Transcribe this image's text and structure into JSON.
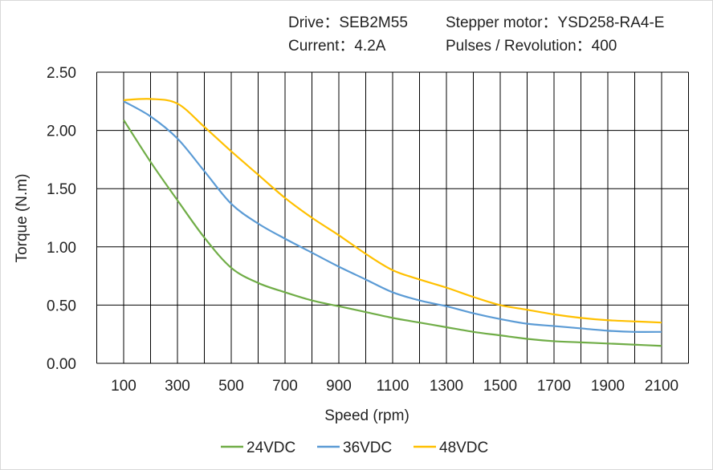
{
  "header": {
    "drive": "Drive：SEB2M55",
    "motor": "Stepper motor：YSD258-RA4-E",
    "current": "Current：4.2A",
    "pulses": "Pulses / Revolution：400"
  },
  "chart_data": {
    "type": "line",
    "title": "",
    "xlabel": "Speed  (rpm)",
    "ylabel": "Torque (N.m)",
    "xlim": [
      0,
      2200
    ],
    "ylim": [
      0,
      2.5
    ],
    "x_ticks": [
      100,
      300,
      500,
      700,
      900,
      1100,
      1300,
      1500,
      1700,
      1900,
      2100
    ],
    "y_ticks": [
      "0.00",
      "0.50",
      "1.00",
      "1.50",
      "2.00",
      "2.50"
    ],
    "grid": true,
    "legend_position": "bottom",
    "x": [
      100,
      200,
      300,
      400,
      500,
      600,
      700,
      800,
      900,
      1000,
      1100,
      1200,
      1300,
      1400,
      1500,
      1600,
      1700,
      1800,
      1900,
      2000,
      2100
    ],
    "series": [
      {
        "name": "24VDC",
        "color": "#70ad47",
        "values": [
          2.09,
          1.73,
          1.4,
          1.08,
          0.82,
          0.69,
          0.61,
          0.54,
          0.49,
          0.44,
          0.39,
          0.35,
          0.31,
          0.27,
          0.24,
          0.21,
          0.19,
          0.18,
          0.17,
          0.16,
          0.15
        ]
      },
      {
        "name": "36VDC",
        "color": "#5b9bd5",
        "values": [
          2.25,
          2.12,
          1.93,
          1.65,
          1.37,
          1.2,
          1.07,
          0.95,
          0.83,
          0.72,
          0.61,
          0.54,
          0.49,
          0.43,
          0.38,
          0.34,
          0.32,
          0.3,
          0.28,
          0.27,
          0.27
        ]
      },
      {
        "name": "48VDC",
        "color": "#ffc000",
        "values": [
          2.26,
          2.27,
          2.23,
          2.03,
          1.82,
          1.62,
          1.42,
          1.25,
          1.1,
          0.94,
          0.8,
          0.72,
          0.65,
          0.57,
          0.5,
          0.46,
          0.42,
          0.39,
          0.37,
          0.36,
          0.35
        ]
      }
    ]
  }
}
